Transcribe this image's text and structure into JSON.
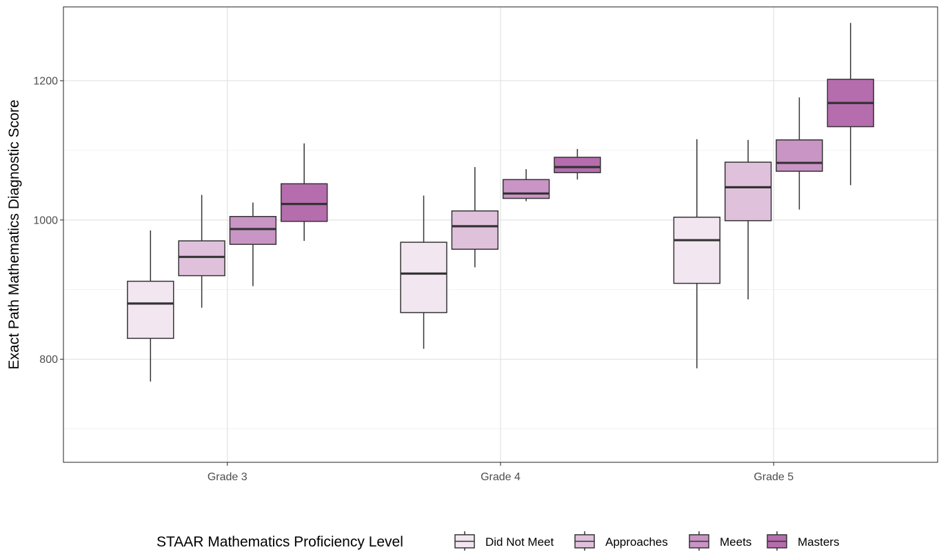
{
  "chart_data": {
    "type": "boxplot",
    "title": "",
    "xlabel": "",
    "ylabel": "Exact Path Mathematics Diagnostic Score",
    "ylim": [
      652,
      1306
    ],
    "y_ticks": [
      800,
      1000,
      1200
    ],
    "y_minor_ticks": [
      700,
      900,
      1100
    ],
    "grid": true,
    "categories": [
      "Grade 3",
      "Grade 4",
      "Grade 5"
    ],
    "legend": {
      "title": "STAAR Mathematics Proficiency Level",
      "position": "bottom"
    },
    "series": [
      {
        "name": "Did Not Meet",
        "color": "#f2e6f0",
        "boxes": [
          {
            "low": 768,
            "q1": 830,
            "median": 880,
            "q3": 912,
            "high": 985
          },
          {
            "low": 815,
            "q1": 867,
            "median": 923,
            "q3": 968,
            "high": 1035
          },
          {
            "low": 787,
            "q1": 909,
            "median": 971,
            "q3": 1004,
            "high": 1116
          }
        ]
      },
      {
        "name": "Approaches",
        "color": "#e0c1dc",
        "boxes": [
          {
            "low": 874,
            "q1": 920,
            "median": 947,
            "q3": 970,
            "high": 1036
          },
          {
            "low": 932,
            "q1": 958,
            "median": 991,
            "q3": 1013,
            "high": 1076
          },
          {
            "low": 886,
            "q1": 999,
            "median": 1047,
            "q3": 1083,
            "high": 1115
          }
        ]
      },
      {
        "name": "Meets",
        "color": "#c995c4",
        "boxes": [
          {
            "low": 905,
            "q1": 965,
            "median": 987,
            "q3": 1005,
            "high": 1025
          },
          {
            "low": 1027,
            "q1": 1031,
            "median": 1038,
            "q3": 1058,
            "high": 1073
          },
          {
            "low": 1015,
            "q1": 1070,
            "median": 1082,
            "q3": 1115,
            "high": 1176
          }
        ]
      },
      {
        "name": "Masters",
        "color": "#b56dae",
        "boxes": [
          {
            "low": 970,
            "q1": 998,
            "median": 1023,
            "q3": 1052,
            "high": 1110
          },
          {
            "low": 1058,
            "q1": 1068,
            "median": 1076,
            "q3": 1090,
            "high": 1102
          },
          {
            "low": 1050,
            "q1": 1134,
            "median": 1168,
            "q3": 1202,
            "high": 1283
          }
        ]
      }
    ]
  }
}
